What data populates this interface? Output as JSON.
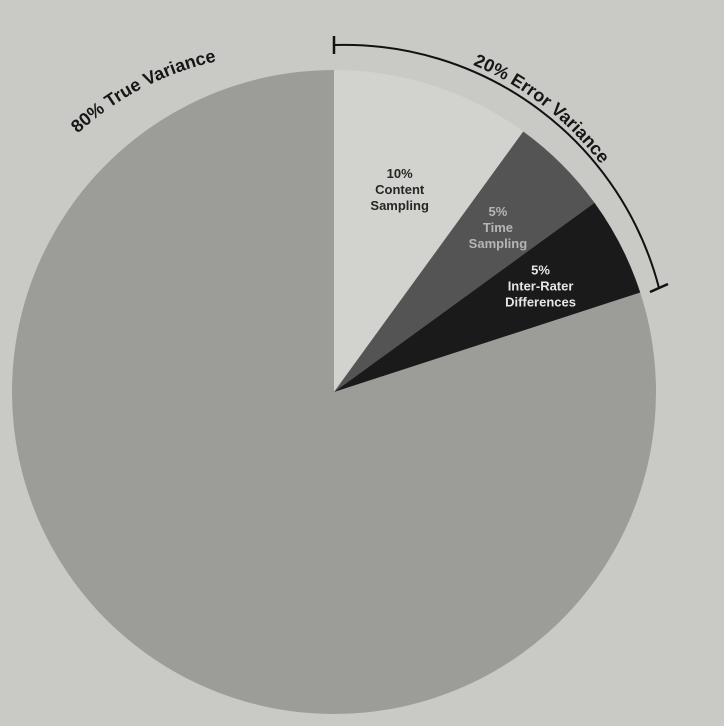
{
  "chart_data": {
    "type": "pie",
    "slices": [
      {
        "label_lines": [
          "80% True Variance"
        ],
        "value": 80,
        "color": "#9c9c99",
        "label_color": "#161616"
      },
      {
        "label_lines": [
          "10%",
          "Content",
          "Sampling"
        ],
        "value": 10,
        "color": "#d2d2ce",
        "label_color": "#262626"
      },
      {
        "label_lines": [
          "5%",
          "Time",
          "Sampling"
        ],
        "value": 5,
        "color": "#545454",
        "label_color": "#b6b6b6"
      },
      {
        "label_lines": [
          "5%",
          "Inter-Rater",
          "Differences"
        ],
        "value": 5,
        "color": "#1a1a1a",
        "label_color": "#e6e6e6"
      }
    ],
    "true_variance_label": "80% True Variance",
    "error_variance_label": "20% Error Variance"
  }
}
